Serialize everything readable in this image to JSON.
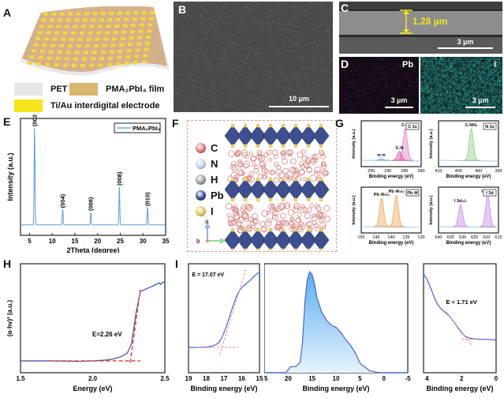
{
  "panels": {
    "A": {
      "label": "A",
      "legend": [
        {
          "name": "PET",
          "color": "#e6e6e6"
        },
        {
          "name": "PMA₂PbI₄ film",
          "color": "#d8b66e"
        },
        {
          "name": "Ti/Au interdigital electrode",
          "color": "#f7e51c"
        }
      ]
    },
    "B": {
      "label": "B",
      "scale_bar": "10 µm"
    },
    "C": {
      "label": "C",
      "thickness": "1.28 µm",
      "scale_bar": "3 µm"
    },
    "D": {
      "label": "D",
      "maps": [
        {
          "element": "Pb",
          "scale_bar": "3 µm",
          "color": "#7a2a6a"
        },
        {
          "element": "I",
          "scale_bar": "3 µm",
          "color": "#2aa7a0"
        }
      ]
    },
    "F": {
      "label": "F",
      "atoms": [
        {
          "symbol": "C",
          "color": "#d9726f"
        },
        {
          "symbol": "N",
          "color": "#c7cfec"
        },
        {
          "symbol": "H",
          "color": "#9a9a9a"
        },
        {
          "symbol": "Pb",
          "color": "#2a3f88"
        },
        {
          "symbol": "I",
          "color": "#e2c45a"
        }
      ],
      "axes": {
        "a": "a",
        "b": "b",
        "c": "c"
      }
    },
    "G": {
      "label": "G"
    },
    "H": {
      "label": "H"
    },
    "I": {
      "label": "I"
    }
  },
  "chart_data": [
    {
      "id": "E",
      "type": "line",
      "title": "",
      "xlabel": "2Theta (degree)",
      "ylabel": "Intensity (a.u.)",
      "xlim": [
        3,
        35
      ],
      "xticks": [
        5,
        10,
        15,
        20,
        25,
        30,
        35
      ],
      "legend": [
        "PMA₂PbI₄"
      ],
      "legend_position": "top-right",
      "color": "#5b9bd5",
      "peaks": [
        {
          "x": 6.1,
          "height": 1.0,
          "label": "(002)"
        },
        {
          "x": 12.3,
          "height": 0.16,
          "label": "(004)"
        },
        {
          "x": 18.5,
          "height": 0.13,
          "label": "(006)"
        },
        {
          "x": 24.8,
          "height": 0.39,
          "label": "(008)"
        },
        {
          "x": 31.0,
          "height": 0.18,
          "label": "(010)"
        }
      ]
    },
    {
      "id": "G-C1s",
      "type": "area",
      "tag": "C 1s",
      "xlabel": "Binding energy (eV)",
      "ylabel": "Intensity (a.u.)",
      "xlim": [
        298,
        280
      ],
      "xticks": [
        295,
        290,
        285,
        280
      ],
      "peaks": [
        {
          "x": 284.8,
          "height": 1.0,
          "label": "C-H",
          "color": "#e27fc0"
        },
        {
          "x": 286.5,
          "height": 0.28,
          "label": "C-N",
          "color": "#d84f9b"
        },
        {
          "x": 292.0,
          "height": 0.05,
          "label": "π-π",
          "color": "#7aa9d9"
        }
      ]
    },
    {
      "id": "G-N1s",
      "type": "area",
      "tag": "N 1s",
      "xlabel": "Binding energy (eV)",
      "ylabel": "Intensity (a.u.)",
      "xlim": [
        410,
        395
      ],
      "xticks": [
        410,
        405,
        400,
        395
      ],
      "peaks": [
        {
          "x": 401.8,
          "height": 1.0,
          "label": "C-NH₂",
          "color": "#8fd08a"
        }
      ]
    },
    {
      "id": "G-Pb4f",
      "type": "area",
      "tag": "Pb 4f",
      "xlabel": "Binding energy (eV)",
      "ylabel": "Intensity (a.u.)",
      "xlim": [
        150,
        130
      ],
      "xticks": [
        150,
        145,
        140,
        135,
        130
      ],
      "peaks": [
        {
          "x": 143.2,
          "height": 0.9,
          "label": "Pb 4f₅/₂",
          "color": "#f2a35c"
        },
        {
          "x": 138.3,
          "height": 1.0,
          "label": "Pb 4f₇/₂",
          "color": "#f2a35c"
        }
      ]
    },
    {
      "id": "G-I3d",
      "type": "area",
      "tag": "I 3d",
      "xlabel": "Binding energy (eV)",
      "ylabel": "Intensity (a.u.)",
      "xlim": [
        640,
        615
      ],
      "xticks": [
        640,
        635,
        630,
        625,
        620,
        615
      ],
      "peaks": [
        {
          "x": 630.8,
          "height": 0.7,
          "label": "I 3d₃/₂",
          "color": "#c58be0"
        },
        {
          "x": 619.5,
          "height": 1.0,
          "label": "I 3d₅/₂",
          "color": "#c58be0"
        }
      ]
    },
    {
      "id": "H",
      "type": "line",
      "xlabel": "Energy (eV)",
      "ylabel": "(α·hv)² (a.u.)",
      "xlim": [
        1.5,
        2.5
      ],
      "xticks": [
        1.5,
        2.0,
        2.5
      ],
      "annotation": "E_g=2.26 eV",
      "bandgap": 2.26,
      "series": [
        {
          "name": "Tauc",
          "color": "#3a4aa8",
          "x": [
            1.5,
            1.7,
            1.9,
            2.0,
            2.05,
            2.1,
            2.15,
            2.2,
            2.24,
            2.27,
            2.3,
            2.33,
            2.36,
            2.4,
            2.44,
            2.46,
            2.47,
            2.48,
            2.5
          ],
          "y": [
            0.0,
            0.0,
            -0.005,
            0.0,
            0.005,
            0.01,
            0.025,
            0.05,
            0.09,
            0.2,
            0.55,
            0.8,
            0.82,
            0.85,
            0.88,
            0.9,
            0.88,
            0.9,
            0.91
          ]
        }
      ]
    },
    {
      "id": "I-cutoff",
      "type": "line",
      "xlabel": "Binding energy (eV)",
      "xlim": [
        19,
        15
      ],
      "xticks": [
        19,
        18,
        17,
        16,
        15
      ],
      "annotation": "E_cutoff = 17.07 eV",
      "cutoff": 17.07,
      "series": [
        {
          "name": "UPS",
          "color": "#4a62d6",
          "x": [
            19,
            18.5,
            18,
            17.6,
            17.3,
            17.1,
            16.9,
            16.7,
            16.5,
            16.3,
            16.1,
            15.9,
            15.7,
            15.5,
            15.3,
            15.1,
            15.0
          ],
          "y": [
            0.0,
            0.0,
            0.005,
            0.02,
            0.06,
            0.14,
            0.26,
            0.4,
            0.55,
            0.68,
            0.77,
            0.82,
            0.86,
            0.9,
            0.95,
            0.99,
            1.0
          ]
        }
      ]
    },
    {
      "id": "I-full",
      "type": "area",
      "xlabel": "Binding energy (eV)",
      "xlim": [
        25,
        -5
      ],
      "xticks": [
        25,
        20,
        15,
        10,
        5,
        0,
        -5
      ],
      "series": [
        {
          "name": "UPS",
          "color": "#4a62d6",
          "x": [
            25,
            22,
            20.5,
            20,
            19.5,
            18.5,
            17.5,
            17,
            16.5,
            16,
            15.5,
            15,
            14.5,
            14,
            13,
            12,
            11,
            10,
            9,
            8,
            7,
            6,
            5,
            4.5,
            4,
            3,
            2,
            1,
            0,
            -2,
            -5
          ],
          "y": [
            0,
            0,
            0.0,
            0.03,
            0.06,
            0.06,
            0.1,
            0.3,
            0.7,
            0.92,
            1.0,
            0.97,
            0.88,
            0.75,
            0.6,
            0.52,
            0.47,
            0.45,
            0.4,
            0.33,
            0.27,
            0.2,
            0.1,
            0.07,
            0.06,
            0.02,
            0.01,
            0,
            0,
            0,
            0
          ]
        }
      ]
    },
    {
      "id": "I-fermi",
      "type": "line",
      "xlabel": "Binding energy (eV)",
      "xlim": [
        4.2,
        0
      ],
      "xticks": [
        4,
        2,
        0
      ],
      "annotation": "E_Fermi = 1.71 eV",
      "fermi": 1.71,
      "series": [
        {
          "name": "UPS",
          "color": "#4a62d6",
          "x": [
            4.2,
            4.0,
            3.8,
            3.6,
            3.4,
            3.2,
            3.0,
            2.8,
            2.6,
            2.4,
            2.2,
            2.0,
            1.8,
            1.6,
            1.4,
            1.0,
            0.5,
            0
          ],
          "y": [
            1.0,
            0.93,
            0.82,
            0.7,
            0.6,
            0.54,
            0.5,
            0.46,
            0.41,
            0.35,
            0.28,
            0.22,
            0.17,
            0.15,
            0.14,
            0.13,
            0.13,
            0.12
          ]
        }
      ]
    }
  ]
}
